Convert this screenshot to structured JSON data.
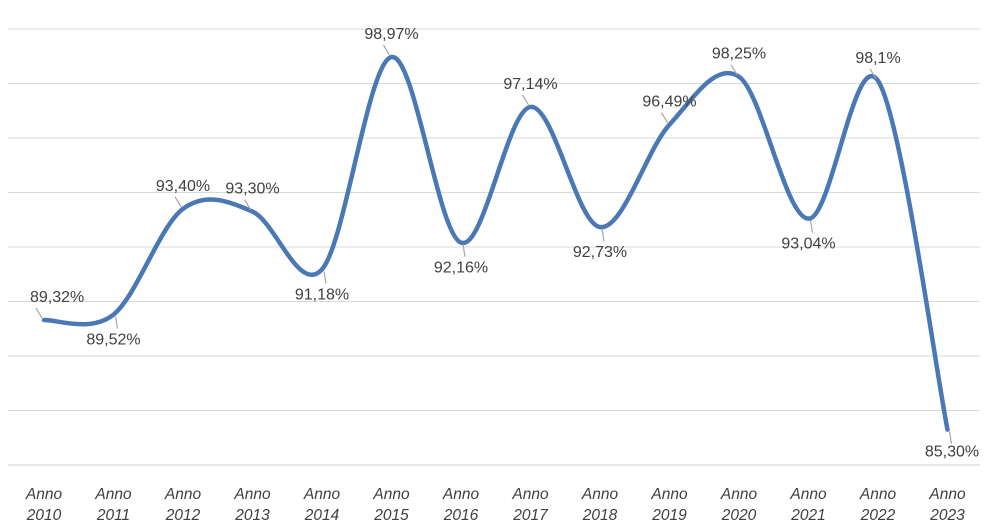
{
  "chart_data": {
    "type": "line",
    "title": "",
    "xlabel": "",
    "ylabel": "",
    "categories": [
      "Anno 2010",
      "Anno 2011",
      "Anno 2012",
      "Anno 2013",
      "Anno 2014",
      "Anno 2015",
      "Anno 2016",
      "Anno 2017",
      "Anno 2018",
      "Anno 2019",
      "Anno 2020",
      "Anno 2021",
      "Anno 2022",
      "Anno 2023"
    ],
    "values": [
      89.32,
      89.52,
      93.4,
      93.3,
      91.18,
      98.97,
      92.16,
      97.14,
      92.73,
      96.49,
      98.25,
      93.04,
      98.1,
      85.3
    ],
    "data_labels": [
      "89,32%",
      "89,52%",
      "93,40%",
      "93,30%",
      "91,18%",
      "98,97%",
      "92,16%",
      "97,14%",
      "92,73%",
      "96,49%",
      "98,25%",
      "93,04%",
      "98,1%",
      "85,30%"
    ],
    "label_placement": [
      "above",
      "below",
      "above",
      "above",
      "below",
      "above",
      "below",
      "above",
      "below",
      "above",
      "above",
      "below",
      "above",
      "below"
    ],
    "series": [
      {
        "values": [
          89.32,
          89.52,
          93.4,
          93.3,
          91.18,
          98.97,
          92.16,
          97.14,
          92.73,
          96.49,
          98.25,
          93.04,
          98.1,
          85.3
        ]
      }
    ],
    "ylim": [
      84,
      100
    ],
    "y_gridlines": [
      84,
      86,
      88,
      90,
      92,
      94,
      96,
      98,
      100
    ],
    "grid": true,
    "y_axis_tick_labels_shown": false,
    "legend": "none",
    "line_style": "smooth",
    "colors": {
      "series": "#4a78b5",
      "grid": "#d9d9d9",
      "text": "#404040",
      "leader": "#a6a6a6"
    }
  }
}
